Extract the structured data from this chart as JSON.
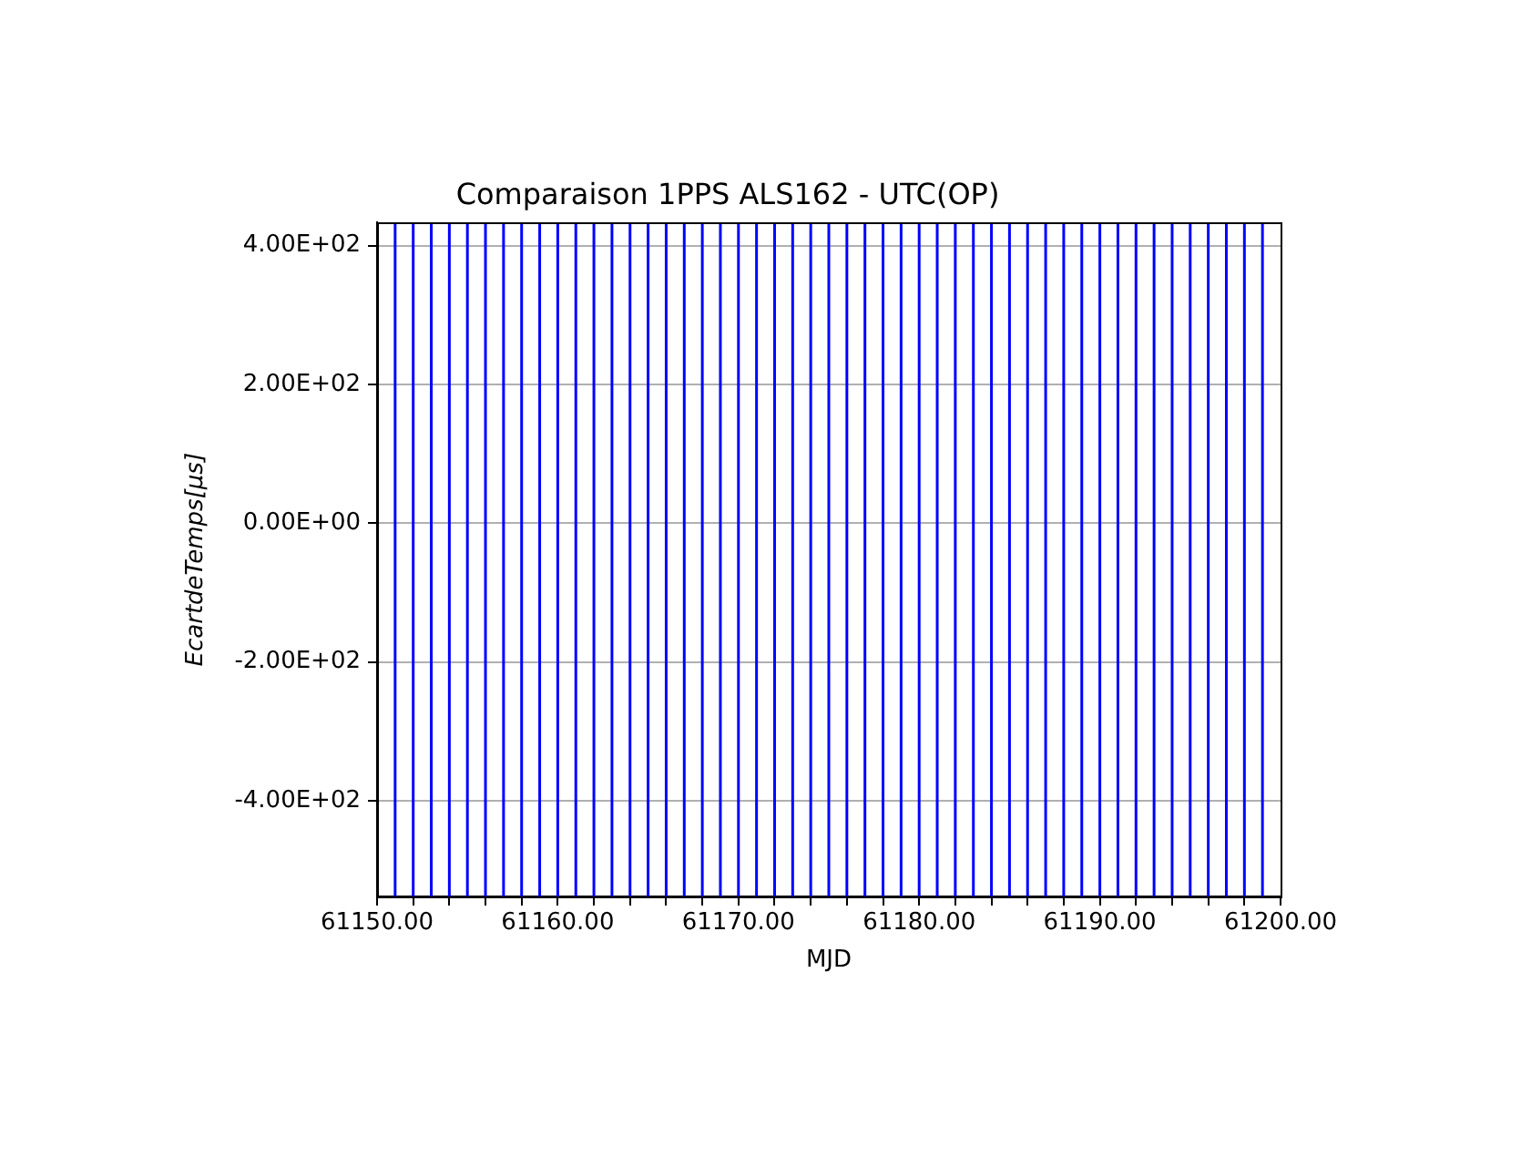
{
  "chart_data": {
    "type": "line",
    "title": "Comparaison 1PPS ALS162 - UTC(OP)",
    "xlabel": "MJD",
    "ylabel": "EcartdeTemps[μs]",
    "xlim": [
      61150,
      61200
    ],
    "xticks": [
      {
        "value": 61150,
        "label": "61150.00"
      },
      {
        "value": 61152,
        "label": null
      },
      {
        "value": 61154,
        "label": null
      },
      {
        "value": 61156,
        "label": null
      },
      {
        "value": 61158,
        "label": null
      },
      {
        "value": 61160,
        "label": "61160.00"
      },
      {
        "value": 61162,
        "label": null
      },
      {
        "value": 61164,
        "label": null
      },
      {
        "value": 61166,
        "label": null
      },
      {
        "value": 61168,
        "label": null
      },
      {
        "value": 61170,
        "label": "61170.00"
      },
      {
        "value": 61172,
        "label": null
      },
      {
        "value": 61174,
        "label": null
      },
      {
        "value": 61176,
        "label": null
      },
      {
        "value": 61178,
        "label": null
      },
      {
        "value": 61180,
        "label": "61180.00"
      },
      {
        "value": 61182,
        "label": null
      },
      {
        "value": 61184,
        "label": null
      },
      {
        "value": 61186,
        "label": null
      },
      {
        "value": 61188,
        "label": null
      },
      {
        "value": 61190,
        "label": "61190.00"
      },
      {
        "value": 61192,
        "label": null
      },
      {
        "value": 61194,
        "label": null
      },
      {
        "value": 61196,
        "label": null
      },
      {
        "value": 61198,
        "label": null
      },
      {
        "value": 61200,
        "label": "61200.00"
      }
    ],
    "ylim": [
      -538,
      433
    ],
    "yticks": [
      {
        "value": -400,
        "label": "-4.00E+02"
      },
      {
        "value": -200,
        "label": "-2.00E+02"
      },
      {
        "value": 0,
        "label": "0.00E+00"
      },
      {
        "value": 200,
        "label": "2.00E+02"
      },
      {
        "value": 400,
        "label": "4.00E+02"
      }
    ],
    "grid": "y",
    "ref_lines": [
      {
        "axis": "x",
        "value": 61151,
        "color": "#0000ff"
      },
      {
        "axis": "x",
        "value": 61152,
        "color": "#0000ff"
      },
      {
        "axis": "x",
        "value": 61153,
        "color": "#0000ff"
      },
      {
        "axis": "x",
        "value": 61154,
        "color": "#0000ff"
      },
      {
        "axis": "x",
        "value": 61155,
        "color": "#0000ff"
      },
      {
        "axis": "x",
        "value": 61156,
        "color": "#0000ff"
      },
      {
        "axis": "x",
        "value": 61157,
        "color": "#0000ff"
      },
      {
        "axis": "x",
        "value": 61158,
        "color": "#0000ff"
      },
      {
        "axis": "x",
        "value": 61159,
        "color": "#0000ff"
      },
      {
        "axis": "x",
        "value": 61160,
        "color": "#0000ff"
      },
      {
        "axis": "x",
        "value": 61161,
        "color": "#0000ff"
      },
      {
        "axis": "x",
        "value": 61162,
        "color": "#0000ff"
      },
      {
        "axis": "x",
        "value": 61163,
        "color": "#0000ff"
      },
      {
        "axis": "x",
        "value": 61164,
        "color": "#0000ff"
      },
      {
        "axis": "x",
        "value": 61165,
        "color": "#0000ff"
      },
      {
        "axis": "x",
        "value": 61166,
        "color": "#0000ff"
      },
      {
        "axis": "x",
        "value": 61167,
        "color": "#0000ff"
      },
      {
        "axis": "x",
        "value": 61168,
        "color": "#0000ff"
      },
      {
        "axis": "x",
        "value": 61169,
        "color": "#0000ff"
      },
      {
        "axis": "x",
        "value": 61170,
        "color": "#0000ff"
      },
      {
        "axis": "x",
        "value": 61171,
        "color": "#0000ff"
      },
      {
        "axis": "x",
        "value": 61172,
        "color": "#0000ff"
      },
      {
        "axis": "x",
        "value": 61173,
        "color": "#0000ff"
      },
      {
        "axis": "x",
        "value": 61174,
        "color": "#0000ff"
      },
      {
        "axis": "x",
        "value": 61175,
        "color": "#0000ff"
      },
      {
        "axis": "x",
        "value": 61176,
        "color": "#0000ff"
      },
      {
        "axis": "x",
        "value": 61177,
        "color": "#0000ff"
      },
      {
        "axis": "x",
        "value": 61178,
        "color": "#0000ff"
      },
      {
        "axis": "x",
        "value": 61179,
        "color": "#0000ff"
      },
      {
        "axis": "x",
        "value": 61180,
        "color": "#0000ff"
      },
      {
        "axis": "x",
        "value": 61181,
        "color": "#0000ff"
      },
      {
        "axis": "x",
        "value": 61182,
        "color": "#0000ff"
      },
      {
        "axis": "x",
        "value": 61183,
        "color": "#0000ff"
      },
      {
        "axis": "x",
        "value": 61184,
        "color": "#0000ff"
      },
      {
        "axis": "x",
        "value": 61185,
        "color": "#0000ff"
      },
      {
        "axis": "x",
        "value": 61186,
        "color": "#0000ff"
      },
      {
        "axis": "x",
        "value": 61187,
        "color": "#0000ff"
      },
      {
        "axis": "x",
        "value": 61188,
        "color": "#0000ff"
      },
      {
        "axis": "x",
        "value": 61189,
        "color": "#0000ff"
      },
      {
        "axis": "x",
        "value": 61190,
        "color": "#0000ff"
      },
      {
        "axis": "x",
        "value": 61191,
        "color": "#0000ff"
      },
      {
        "axis": "x",
        "value": 61192,
        "color": "#0000ff"
      },
      {
        "axis": "x",
        "value": 61193,
        "color": "#0000ff"
      },
      {
        "axis": "x",
        "value": 61194,
        "color": "#0000ff"
      },
      {
        "axis": "x",
        "value": 61195,
        "color": "#0000ff"
      },
      {
        "axis": "x",
        "value": 61196,
        "color": "#0000ff"
      },
      {
        "axis": "x",
        "value": 61197,
        "color": "#0000ff"
      },
      {
        "axis": "x",
        "value": 61198,
        "color": "#0000ff"
      },
      {
        "axis": "x",
        "value": 61199,
        "color": "#0000ff"
      }
    ]
  }
}
